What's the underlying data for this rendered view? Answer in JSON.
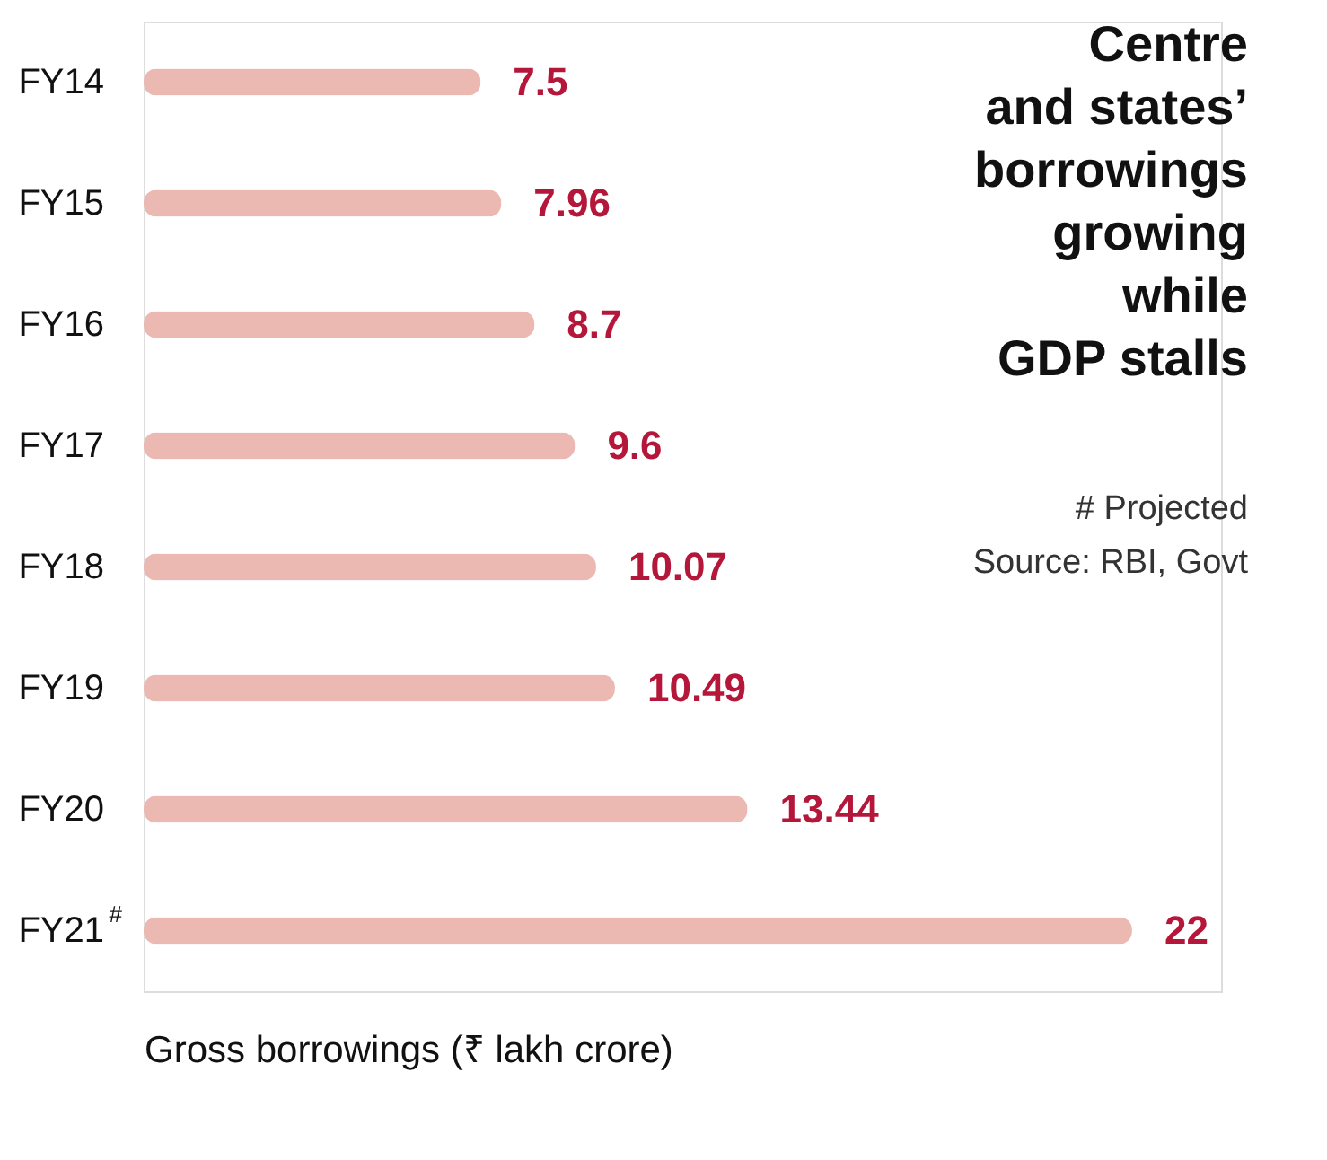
{
  "chart_data": {
    "type": "bar",
    "orientation": "horizontal",
    "title": "Centre\nand states’\nborrowings\ngrowing\nwhile\nGDP stalls",
    "categories": [
      "FY14",
      "FY15",
      "FY16",
      "FY17",
      "FY18",
      "FY19",
      "FY20",
      "FY21$^{#}$"
    ],
    "values": [
      7.5,
      7.96,
      8.7,
      9.6,
      10.07,
      10.49,
      13.44,
      22
    ],
    "color": "#ebb8b2",
    "data_labels": true,
    "xlabel": "Gross borrowings (₹ lakh crore)",
    "annotations": [
      "# Projected",
      "Source: RBI, Govt"
    ],
    "tick_labels": "y",
    "grid": false
  }
}
